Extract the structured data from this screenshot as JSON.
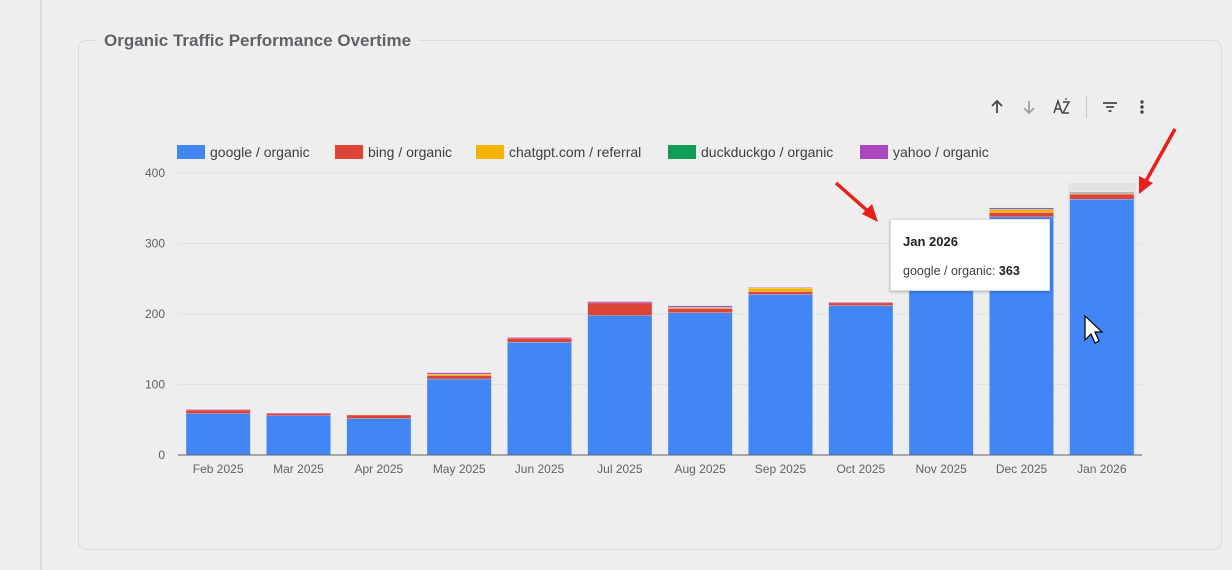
{
  "card": {
    "title": "Organic Traffic Performance Overtime"
  },
  "toolbar": {
    "icons": [
      "arrow-up-icon",
      "arrow-down-icon",
      "sort-az-icon",
      "filter-icon",
      "more-vert-icon"
    ]
  },
  "tooltip": {
    "title": "Jan 2026",
    "series_label": "google / organic:",
    "value": "363"
  },
  "annotations": {
    "arrows": [
      "red-arrow-to-tooltip",
      "red-arrow-to-jan-2026-bar"
    ],
    "cursor": "mouse-pointer"
  },
  "chart_data": {
    "type": "bar",
    "stacked": true,
    "categories": [
      "Feb 2025",
      "Mar 2025",
      "Apr 2025",
      "May 2025",
      "Jun 2025",
      "Jul 2025",
      "Aug 2025",
      "Sep 2025",
      "Oct 2025",
      "Nov 2025",
      "Dec 2025",
      "Jan 2026"
    ],
    "series": [
      {
        "name": "google / organic",
        "color": "#4285f4",
        "values": [
          59,
          56,
          52,
          108,
          160,
          198,
          202,
          228,
          212,
          235,
          338,
          363
        ]
      },
      {
        "name": "bing / organic",
        "color": "#db4437",
        "values": [
          5,
          3,
          5,
          5,
          6,
          18,
          6,
          4,
          4,
          5,
          6,
          7
        ]
      },
      {
        "name": "chatgpt.com / referral",
        "color": "#f4b400",
        "values": [
          0,
          0,
          0,
          2,
          0,
          0,
          1,
          5,
          0,
          0,
          4,
          1
        ]
      },
      {
        "name": "duckduckgo / organic",
        "color": "#0f9d58",
        "values": [
          0,
          0,
          0,
          0,
          0,
          0,
          1,
          0,
          0,
          0,
          1,
          1
        ]
      },
      {
        "name": "yahoo / organic",
        "color": "#ab47bc",
        "values": [
          1,
          1,
          0,
          2,
          1,
          2,
          2,
          1,
          1,
          1,
          2,
          1
        ]
      }
    ],
    "y_ticks": [
      "0",
      "100",
      "200",
      "300",
      "400"
    ],
    "ylim": [
      0,
      400
    ],
    "xlabel": "",
    "ylabel": "",
    "grid": true,
    "legend": "top-left",
    "highlighted_category": "Jan 2026"
  }
}
